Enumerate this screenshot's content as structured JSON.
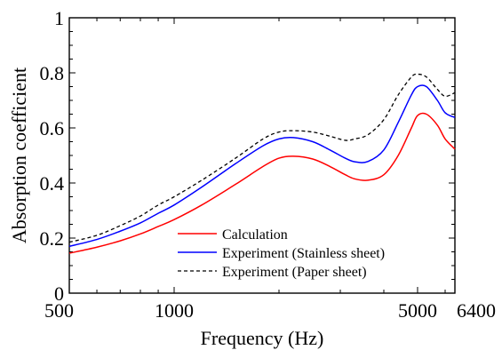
{
  "chart_data": {
    "type": "line",
    "title": "",
    "xlabel": "Frequency (Hz)",
    "ylabel": "Absorption coefficient",
    "x_scale": "log",
    "xlim": [
      500,
      6400
    ],
    "ylim": [
      0,
      1
    ],
    "x_ticks": [
      "500",
      "1000",
      "5000",
      "6400"
    ],
    "x_tick_values": [
      500,
      1000,
      5000,
      6400
    ],
    "y_ticks": [
      "0",
      "0.2",
      "0.4",
      "0.6",
      "0.8",
      "1"
    ],
    "y_tick_values": [
      0,
      0.2,
      0.4,
      0.6,
      0.8,
      1
    ],
    "grid": false,
    "legend_position": "bottom-right",
    "series": [
      {
        "name": "Calculation",
        "color": "#ff0000",
        "dash": "solid",
        "x": [
          500,
          600,
          700,
          800,
          900,
          1000,
          1200,
          1500,
          1800,
          2000,
          2200,
          2500,
          2800,
          3100,
          3300,
          3600,
          4000,
          4400,
          4800,
          5000,
          5300,
          5700,
          6000,
          6400
        ],
        "y": [
          0.145,
          0.167,
          0.19,
          0.215,
          0.242,
          0.267,
          0.32,
          0.395,
          0.46,
          0.49,
          0.497,
          0.487,
          0.46,
          0.43,
          0.415,
          0.41,
          0.43,
          0.5,
          0.6,
          0.645,
          0.65,
          0.61,
          0.56,
          0.523
        ]
      },
      {
        "name": "Experiment (Stainless sheet)",
        "color": "#0000ff",
        "dash": "solid",
        "x": [
          500,
          600,
          700,
          800,
          900,
          1000,
          1200,
          1500,
          1800,
          2000,
          2200,
          2500,
          2800,
          3100,
          3300,
          3600,
          4000,
          4400,
          4800,
          5000,
          5300,
          5700,
          6000,
          6400
        ],
        "y": [
          0.17,
          0.195,
          0.225,
          0.255,
          0.29,
          0.32,
          0.385,
          0.47,
          0.535,
          0.56,
          0.565,
          0.55,
          0.52,
          0.49,
          0.477,
          0.478,
          0.52,
          0.62,
          0.72,
          0.75,
          0.75,
          0.7,
          0.655,
          0.638
        ]
      },
      {
        "name": "Experiment (Paper sheet)",
        "color": "#000000",
        "dash": "dashed",
        "x": [
          500,
          600,
          700,
          800,
          900,
          1000,
          1200,
          1500,
          1800,
          2000,
          2200,
          2500,
          2800,
          3100,
          3300,
          3600,
          4000,
          4400,
          4800,
          5000,
          5300,
          5700,
          6000,
          6400
        ],
        "y": [
          0.185,
          0.21,
          0.245,
          0.28,
          0.32,
          0.35,
          0.41,
          0.49,
          0.56,
          0.585,
          0.59,
          0.585,
          0.57,
          0.555,
          0.56,
          0.575,
          0.63,
          0.72,
          0.785,
          0.795,
          0.785,
          0.74,
          0.715,
          0.728
        ]
      }
    ]
  }
}
